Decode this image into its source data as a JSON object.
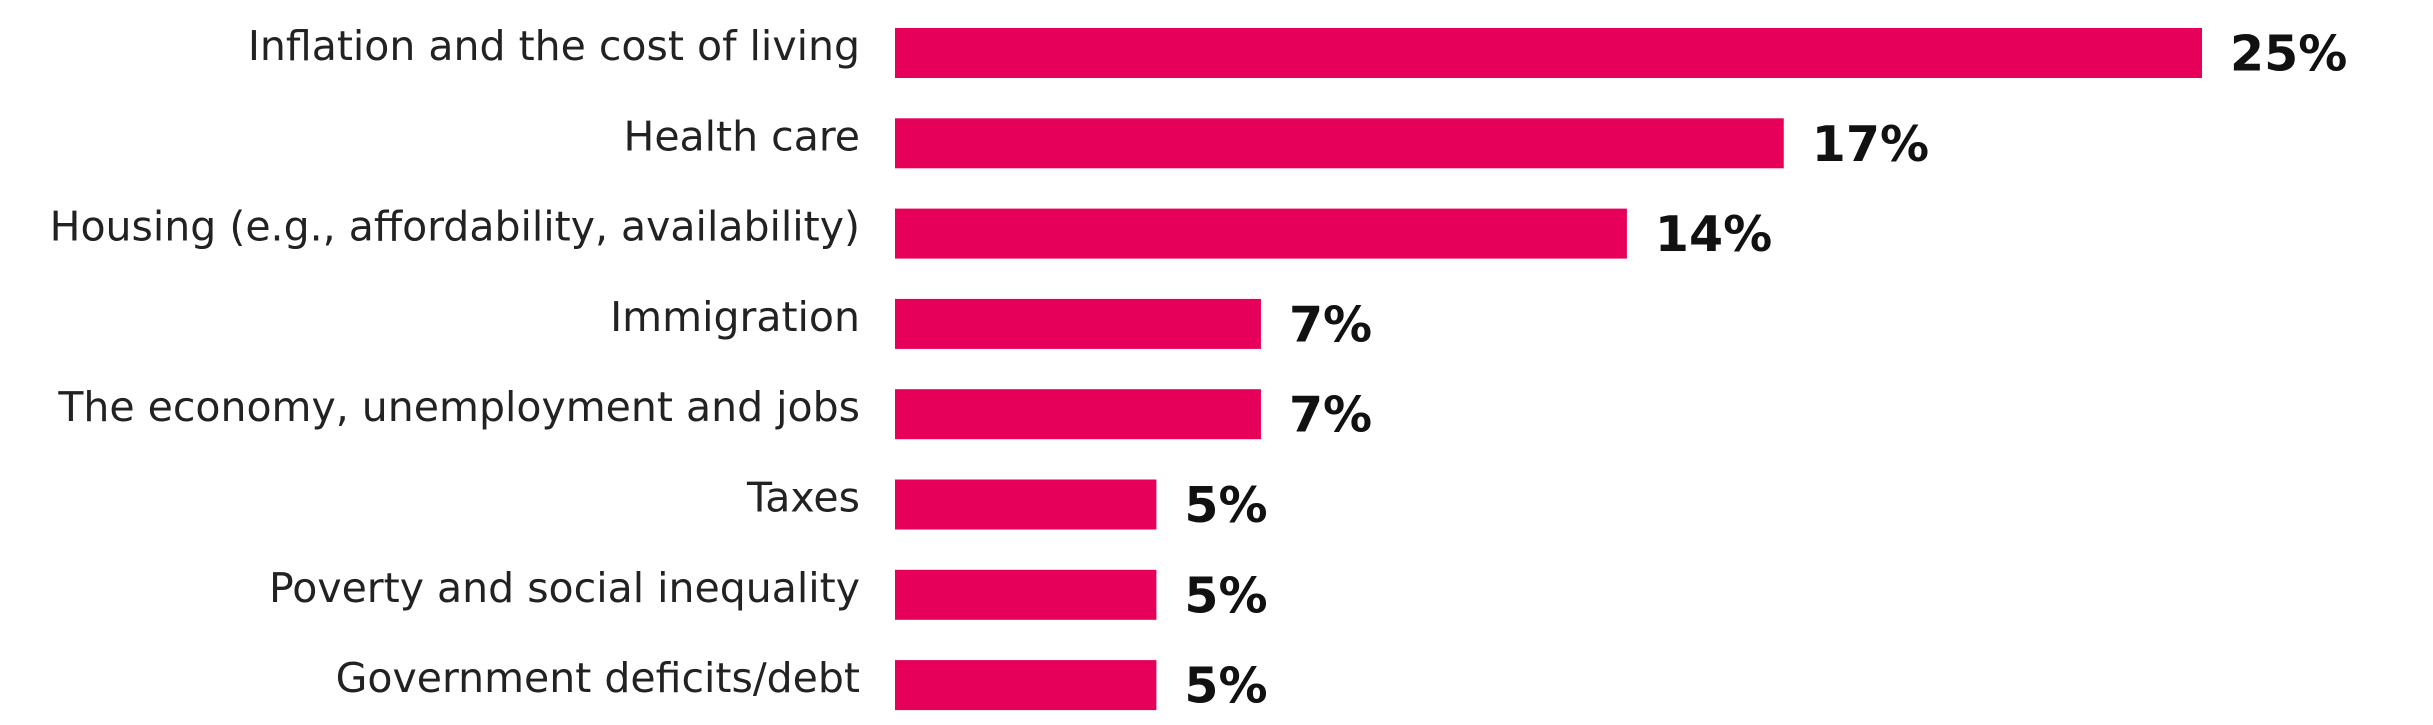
{
  "chart_data": {
    "type": "bar",
    "orientation": "horizontal",
    "categories": [
      "Inflation and the cost of living",
      "Health care",
      "Housing (e.g., affordability, availability)",
      "Immigration",
      "The economy, unemployment and jobs",
      "Taxes",
      "Poverty and social inequality",
      "Government deficits/debt"
    ],
    "values": [
      25,
      17,
      14,
      7,
      7,
      5,
      5,
      5
    ],
    "value_labels": [
      "25%",
      "17%",
      "14%",
      "7%",
      "7%",
      "5%",
      "5%",
      "5%"
    ],
    "value_unit": "%",
    "title": "",
    "xlabel": "",
    "ylabel": "",
    "xlim": [
      0,
      25
    ],
    "grid": false,
    "legend": "none",
    "bar_color": "#e6005a"
  }
}
